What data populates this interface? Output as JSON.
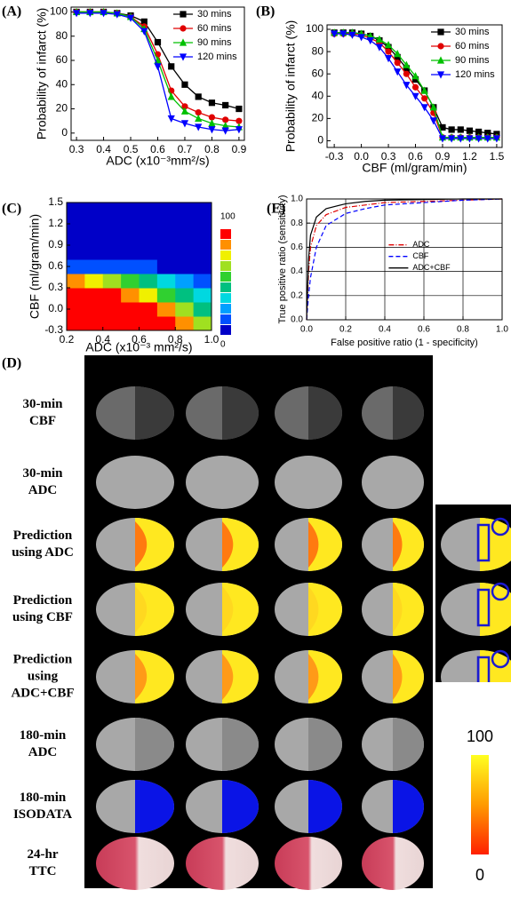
{
  "chart_data": [
    {
      "type": "line",
      "panel": "(A)",
      "xlabel": "ADC (x10⁻³mm²/s)",
      "ylabel": "Probability of infarct (%)",
      "x": [
        0.3,
        0.35,
        0.4,
        0.45,
        0.5,
        0.55,
        0.6,
        0.65,
        0.7,
        0.75,
        0.8,
        0.85,
        0.9
      ],
      "xlim": [
        0.28,
        0.92
      ],
      "xticks": [
        0.3,
        0.4,
        0.5,
        0.6,
        0.7,
        0.8,
        0.9
      ],
      "ylim": [
        -6,
        104
      ],
      "yticks": [
        0,
        20,
        40,
        60,
        80,
        100
      ],
      "legend": "upper right",
      "series": [
        {
          "name": "30 mins",
          "color": "#000000",
          "marker": "square",
          "values": [
            100,
            100,
            100,
            99,
            97,
            92,
            75,
            55,
            40,
            30,
            25,
            23,
            20
          ]
        },
        {
          "name": "60 mins",
          "color": "#e00000",
          "marker": "circle",
          "values": [
            100,
            100,
            100,
            99,
            96,
            88,
            65,
            35,
            22,
            17,
            13,
            11,
            10
          ]
        },
        {
          "name": "90 mins",
          "color": "#00c000",
          "marker": "triangle",
          "values": [
            100,
            100,
            100,
            99,
            96,
            86,
            60,
            30,
            18,
            12,
            8,
            6,
            5
          ]
        },
        {
          "name": "120 mins",
          "color": "#0000ff",
          "marker": "triangle-down",
          "values": [
            99,
            99,
            99,
            98,
            95,
            84,
            55,
            12,
            8,
            5,
            3,
            2,
            3
          ]
        }
      ]
    },
    {
      "type": "line",
      "panel": "(B)",
      "xlabel": "CBF (ml/gram/min)",
      "ylabel": "Probability of infarct (%)",
      "x": [
        -0.3,
        -0.2,
        -0.1,
        0,
        0.1,
        0.2,
        0.3,
        0.4,
        0.5,
        0.6,
        0.7,
        0.8,
        0.9,
        1.0,
        1.1,
        1.2,
        1.3,
        1.4,
        1.5
      ],
      "xlim": [
        -0.38,
        1.56
      ],
      "xticks": [
        -0.3,
        {
          "value": 0,
          "label": "0.0"
        },
        0.3,
        0.6,
        0.9,
        1.2,
        1.5
      ],
      "ylim": [
        -6,
        104
      ],
      "yticks": [
        0,
        20,
        40,
        60,
        80,
        100
      ],
      "legend": "upper right",
      "series": [
        {
          "name": "30 mins",
          "color": "#000000",
          "marker": "square",
          "values": [
            97,
            97,
            97,
            96,
            94,
            90,
            84,
            75,
            65,
            55,
            45,
            30,
            12,
            10,
            10,
            9,
            8,
            7,
            6
          ]
        },
        {
          "name": "60 mins",
          "color": "#e00000",
          "marker": "circle",
          "values": [
            96,
            96,
            96,
            95,
            92,
            88,
            80,
            70,
            60,
            48,
            38,
            25,
            3,
            3,
            3,
            3,
            3,
            3,
            3
          ]
        },
        {
          "name": "90 mins",
          "color": "#00c000",
          "marker": "triangle",
          "values": [
            97,
            97,
            97,
            96,
            94,
            91,
            86,
            78,
            68,
            58,
            45,
            30,
            3,
            3,
            3,
            3,
            3,
            3,
            3
          ]
        },
        {
          "name": "120 mins",
          "color": "#0000ff",
          "marker": "triangle-down",
          "values": [
            96,
            96,
            95,
            93,
            90,
            84,
            74,
            62,
            50,
            40,
            30,
            18,
            2,
            2,
            2,
            2,
            2,
            2,
            2
          ]
        }
      ]
    },
    {
      "type": "heatmap",
      "panel": "(C)",
      "xlabel": "ADC (x10⁻³ mm²/s)",
      "ylabel": "CBF (ml/gram/min)",
      "xlim": [
        0.2,
        1.0
      ],
      "xticks": [
        0.2,
        0.4,
        0.6,
        0.8,
        {
          "value": 1.0,
          "label": "1.0"
        }
      ],
      "ylim": [
        -0.3,
        1.5
      ],
      "yticks": [
        -0.3,
        {
          "value": 0,
          "label": "0.0"
        },
        0.3,
        0.6,
        0.9,
        1.2,
        1.5
      ],
      "x_edges": [
        0.2,
        0.3,
        0.4,
        0.5,
        0.6,
        0.7,
        0.8,
        0.9,
        1.0
      ],
      "y_edges": [
        -0.3,
        -0.1,
        0.1,
        0.3,
        0.5,
        0.7,
        0.9,
        1.1,
        1.3,
        1.5
      ],
      "z": [
        [
          100,
          100,
          100,
          100,
          100,
          95,
          80,
          60
        ],
        [
          100,
          100,
          100,
          100,
          90,
          80,
          60,
          40
        ],
        [
          100,
          100,
          95,
          85,
          70,
          55,
          40,
          30
        ],
        [
          80,
          70,
          60,
          50,
          40,
          30,
          20,
          15
        ],
        [
          10,
          15,
          15,
          10,
          10,
          5,
          5,
          5
        ],
        [
          0,
          0,
          0,
          0,
          0,
          0,
          0,
          0
        ],
        [
          0,
          0,
          0,
          0,
          0,
          0,
          0,
          0
        ],
        [
          0,
          0,
          0,
          0,
          0,
          0,
          0,
          0
        ],
        [
          0,
          0,
          0,
          0,
          0,
          0,
          0,
          0
        ]
      ],
      "zlim": [
        0,
        100
      ],
      "zticks": [
        0,
        100
      ],
      "colors": [
        "#0000c8",
        "#0050ff",
        "#00a0ff",
        "#00d8e0",
        "#00c080",
        "#30d030",
        "#a0e020",
        "#f0f000",
        "#ff9000",
        "#ff0000"
      ]
    },
    {
      "type": "line",
      "panel": "(E)",
      "xlabel": "False positive ratio (1 - specificity)",
      "ylabel": "True positive ratio (sensitivity)",
      "x": [
        0,
        0.01,
        0.02,
        0.05,
        0.1,
        0.2,
        0.3,
        0.4,
        0.6,
        0.8,
        1.0
      ],
      "xlim": [
        0,
        1
      ],
      "xticks": [
        {
          "value": 0,
          "label": "0.0"
        },
        0.2,
        0.4,
        0.6,
        0.8,
        {
          "value": 1,
          "label": "1.0"
        }
      ],
      "ylim": [
        0,
        1
      ],
      "yticks": [
        {
          "value": 0,
          "label": "0.0"
        },
        0.2,
        0.4,
        0.6,
        0.8,
        {
          "value": 1,
          "label": "1.0"
        }
      ],
      "grid": true,
      "legend": "center right",
      "series": [
        {
          "name": "ADC",
          "color": "#e00000",
          "dash": "dashdot",
          "values": [
            0,
            0.4,
            0.6,
            0.78,
            0.87,
            0.93,
            0.95,
            0.97,
            0.98,
            0.99,
            1.0
          ]
        },
        {
          "name": "CBF",
          "color": "#0000ff",
          "dash": "dashed",
          "values": [
            0,
            0.2,
            0.35,
            0.6,
            0.78,
            0.88,
            0.92,
            0.95,
            0.97,
            0.99,
            1.0
          ]
        },
        {
          "name": "ADC+CBF",
          "color": "#000000",
          "dash": "solid",
          "values": [
            0,
            0.5,
            0.7,
            0.85,
            0.92,
            0.96,
            0.98,
            0.99,
            0.995,
            1.0,
            1.0
          ]
        }
      ]
    }
  ],
  "figure_d": {
    "label": "(D)",
    "rows": [
      [
        "30-min",
        "CBF"
      ],
      [
        "30-min",
        "ADC"
      ],
      [
        "Prediction",
        "using ADC"
      ],
      [
        "Prediction",
        "using CBF"
      ],
      [
        "Prediction",
        "using",
        "ADC+CBF"
      ],
      [
        "180-min",
        "ADC"
      ],
      [
        "180-min",
        "ISODATA"
      ],
      [
        "24-hr",
        "TTC"
      ]
    ],
    "colorbar_ticks": [
      0,
      100
    ]
  }
}
